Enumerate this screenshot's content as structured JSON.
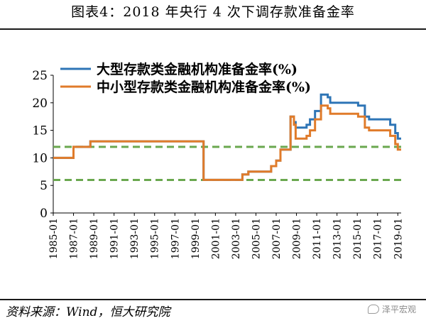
{
  "page": {
    "title": "图表4：2018 年央行 4 次下调存款准备金率",
    "source": "资料来源：Wind，恒大研究院",
    "watermark": "泽平宏观"
  },
  "chart_data": {
    "type": "line",
    "title": "图表4：2018 年央行 4 次下调存款准备金率",
    "xlabel": "",
    "ylabel": "",
    "ylim": [
      0,
      25
    ],
    "yticks": [
      0,
      5,
      10,
      15,
      20,
      25
    ],
    "xlim": [
      1985.0,
      2019.33
    ],
    "xticks": [
      "1985-01",
      "1987-01",
      "1989-01",
      "1991-01",
      "1993-01",
      "1995-01",
      "1997-01",
      "1999-01",
      "2001-01",
      "2003-01",
      "2005-01",
      "2007-01",
      "2009-01",
      "2011-01",
      "2013-01",
      "2015-01",
      "2017-01",
      "2019-01"
    ],
    "grid": false,
    "legend": "top-left",
    "colors": {
      "large": "#2e75b6",
      "small": "#e07b2a",
      "reference": "#6aa84f"
    },
    "series": [
      {
        "name": "大型存款类金融机构准备金率(%)",
        "color": "#2e75b6",
        "x": [
          "1985-01",
          "1987-01",
          "1988-09",
          "1998-03",
          "1999-11",
          "2003-09",
          "2004-04",
          "2006-07",
          "2007-01",
          "2007-06",
          "2008-06",
          "2008-10",
          "2008-12",
          "2010-01",
          "2010-05",
          "2010-11",
          "2011-06",
          "2012-02",
          "2012-05",
          "2015-02",
          "2015-10",
          "2016-03",
          "2018-04",
          "2018-10",
          "2019-01"
        ],
        "y": [
          10,
          12,
          13,
          13,
          6,
          7,
          7.5,
          8.5,
          9.5,
          11.5,
          17.5,
          16.5,
          15.5,
          16,
          17,
          18.5,
          21.5,
          21,
          20,
          19.5,
          17.5,
          17,
          16,
          14.5,
          13.5
        ]
      },
      {
        "name": "中小型存款类金融机构准备金率(%)",
        "color": "#e07b2a",
        "x": [
          "1985-01",
          "1987-01",
          "1988-09",
          "1998-03",
          "1999-11",
          "2003-09",
          "2004-04",
          "2006-07",
          "2007-01",
          "2007-06",
          "2008-06",
          "2008-10",
          "2008-12",
          "2010-01",
          "2010-05",
          "2010-11",
          "2011-06",
          "2012-02",
          "2012-05",
          "2015-02",
          "2015-10",
          "2016-03",
          "2018-04",
          "2018-10",
          "2019-01"
        ],
        "y": [
          10,
          12,
          13,
          13,
          6,
          7,
          7.5,
          8.5,
          9.5,
          11.5,
          17.5,
          16,
          13.5,
          14,
          15,
          17,
          19.5,
          19,
          18,
          17.5,
          15.5,
          15,
          14,
          12.5,
          11.5
        ]
      }
    ],
    "reference_lines": [
      12,
      6
    ]
  }
}
